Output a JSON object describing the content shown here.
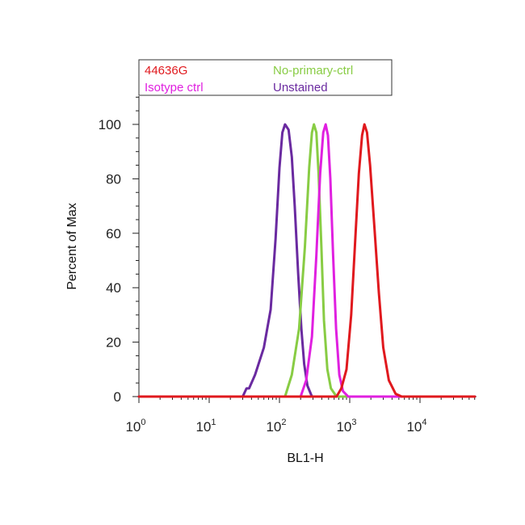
{
  "chart_data": {
    "type": "line",
    "title": "",
    "xlabel": "BL1-H",
    "ylabel": "Percent of Max",
    "xscale": "log",
    "xlim": [
      1,
      60000
    ],
    "ylim": [
      0,
      110
    ],
    "x_ticks": [
      {
        "base": "10",
        "exp": "0"
      },
      {
        "base": "10",
        "exp": "1"
      },
      {
        "base": "10",
        "exp": "2"
      },
      {
        "base": "10",
        "exp": "3"
      },
      {
        "base": "10",
        "exp": "4"
      }
    ],
    "y_ticks": [
      "0",
      "20",
      "40",
      "60",
      "80",
      "100"
    ],
    "grid": false,
    "legend_position": "top",
    "series": [
      {
        "name": "Unstained",
        "color": "#6a2aa0",
        "points": [
          [
            1,
            0
          ],
          [
            30,
            0
          ],
          [
            34,
            3
          ],
          [
            37,
            3
          ],
          [
            45,
            8
          ],
          [
            60,
            18
          ],
          [
            75,
            32
          ],
          [
            88,
            58
          ],
          [
            100,
            84
          ],
          [
            110,
            97
          ],
          [
            120,
            100
          ],
          [
            135,
            98
          ],
          [
            150,
            88
          ],
          [
            165,
            70
          ],
          [
            185,
            45
          ],
          [
            205,
            25
          ],
          [
            225,
            12
          ],
          [
            250,
            4
          ],
          [
            290,
            0
          ],
          [
            60000,
            0
          ]
        ]
      },
      {
        "name": "No-primary-ctrl",
        "color": "#88cc44",
        "points": [
          [
            1,
            0
          ],
          [
            120,
            0
          ],
          [
            150,
            8
          ],
          [
            190,
            25
          ],
          [
            230,
            55
          ],
          [
            265,
            84
          ],
          [
            290,
            97
          ],
          [
            310,
            100
          ],
          [
            335,
            97
          ],
          [
            360,
            82
          ],
          [
            395,
            55
          ],
          [
            430,
            28
          ],
          [
            480,
            10
          ],
          [
            540,
            3
          ],
          [
            650,
            0
          ],
          [
            60000,
            0
          ]
        ]
      },
      {
        "name": "Isotype ctrl",
        "color": "#e020e0",
        "points": [
          [
            1,
            0
          ],
          [
            200,
            0
          ],
          [
            240,
            6
          ],
          [
            290,
            22
          ],
          [
            335,
            52
          ],
          [
            380,
            82
          ],
          [
            420,
            97
          ],
          [
            455,
            100
          ],
          [
            490,
            96
          ],
          [
            530,
            80
          ],
          [
            580,
            52
          ],
          [
            640,
            25
          ],
          [
            710,
            8
          ],
          [
            800,
            2
          ],
          [
            950,
            0
          ],
          [
            60000,
            0
          ]
        ]
      },
      {
        "name": "44636G",
        "color": "#e0191e",
        "points": [
          [
            1,
            0
          ],
          [
            650,
            0
          ],
          [
            760,
            3
          ],
          [
            900,
            10
          ],
          [
            1050,
            30
          ],
          [
            1200,
            58
          ],
          [
            1350,
            82
          ],
          [
            1500,
            96
          ],
          [
            1620,
            100
          ],
          [
            1760,
            97
          ],
          [
            1950,
            85
          ],
          [
            2250,
            62
          ],
          [
            2600,
            38
          ],
          [
            3000,
            18
          ],
          [
            3600,
            6
          ],
          [
            4500,
            1
          ],
          [
            5500,
            0
          ],
          [
            60000,
            0
          ]
        ]
      }
    ]
  }
}
